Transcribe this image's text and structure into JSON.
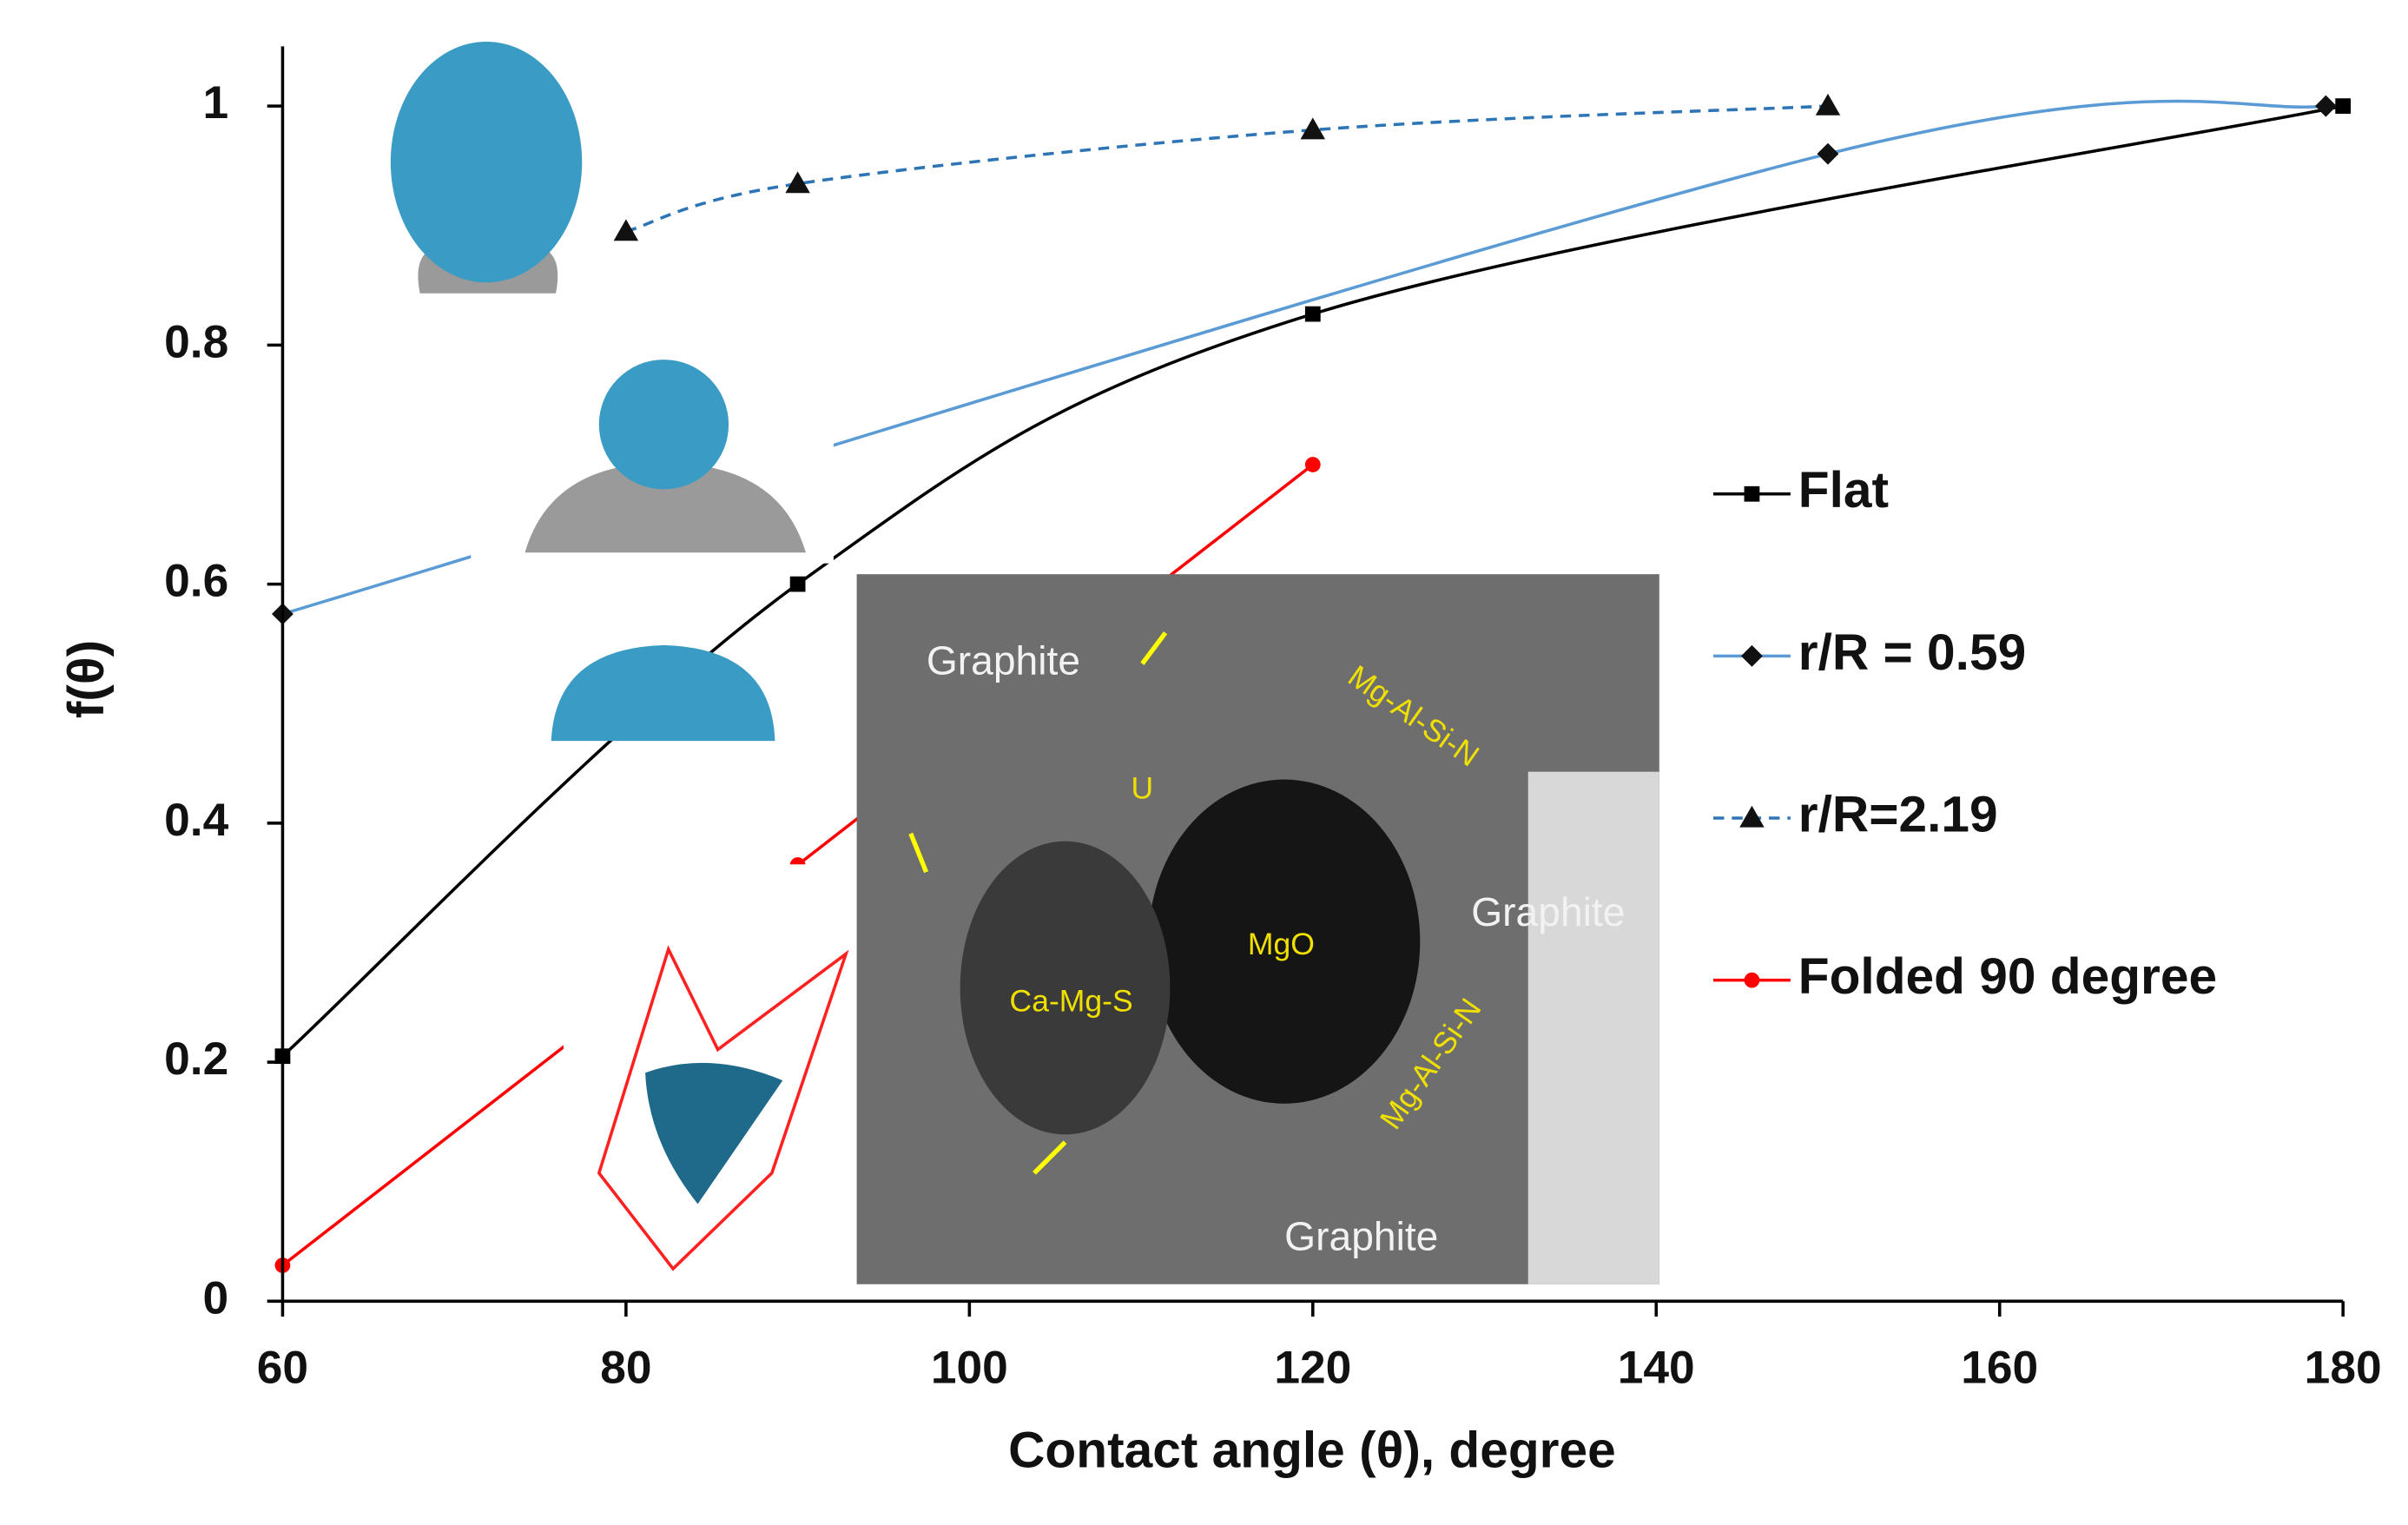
{
  "chart_data": {
    "type": "line",
    "xlabel": "Contact angle (θ), degree",
    "ylabel": "f(θ)",
    "xlim": [
      60,
      180
    ],
    "ylim": [
      0,
      1.05
    ],
    "xticks": [
      60,
      80,
      100,
      120,
      140,
      160,
      180
    ],
    "yticks": [
      0,
      0.2,
      0.4,
      0.6,
      0.8,
      1
    ],
    "legend": "right",
    "series": [
      {
        "name": "Flat",
        "color": "#000000",
        "marker": "square",
        "dashed": false,
        "x": [
          60,
          90,
          120,
          180
        ],
        "values": [
          0.205,
          0.6,
          0.826,
          1
        ]
      },
      {
        "name": "r/R = 0.59",
        "color": "#5b9bd5",
        "marker": "diamond",
        "dashed": false,
        "x": [
          60,
          150,
          179
        ],
        "values": [
          0.575,
          0.96,
          1
        ]
      },
      {
        "name": "r/R=2.19",
        "color": "#2e75b6",
        "marker": "triangle",
        "dashed": true,
        "x": [
          80,
          90,
          120,
          150
        ],
        "values": [
          0.895,
          0.935,
          0.98,
          1
        ]
      },
      {
        "name": "Folded 90 degree",
        "color": "#ff0000",
        "marker": "circle",
        "dashed": false,
        "x": [
          60,
          90,
          120
        ],
        "values": [
          0.03,
          0.365,
          0.7
        ]
      }
    ],
    "annotations": [
      "Graphite",
      "Mg-Al-Si-N",
      "U",
      "MgO",
      "Ca-Mg-S",
      "Graphite",
      "Mg-Al-Si-N",
      "Graphite"
    ]
  }
}
